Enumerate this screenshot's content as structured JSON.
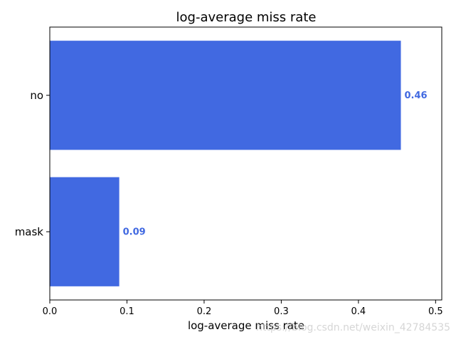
{
  "chart_data": {
    "type": "bar",
    "orientation": "horizontal",
    "title": "log-average miss rate",
    "xlabel": "log-average miss rate",
    "ylabel": "",
    "categories": [
      "no",
      "mask"
    ],
    "values": [
      0.455,
      0.09
    ],
    "data_labels": [
      "0.46",
      "0.09"
    ],
    "xlim": [
      0,
      0.508
    ],
    "xticks": [
      "0.0",
      "0.1",
      "0.2",
      "0.3",
      "0.4",
      "0.5"
    ],
    "bar_color": "#4169e1",
    "label_color": "#4169e1",
    "grid": false,
    "legend": "none"
  },
  "watermark": "https://blog.csdn.net/weixin_42784535"
}
